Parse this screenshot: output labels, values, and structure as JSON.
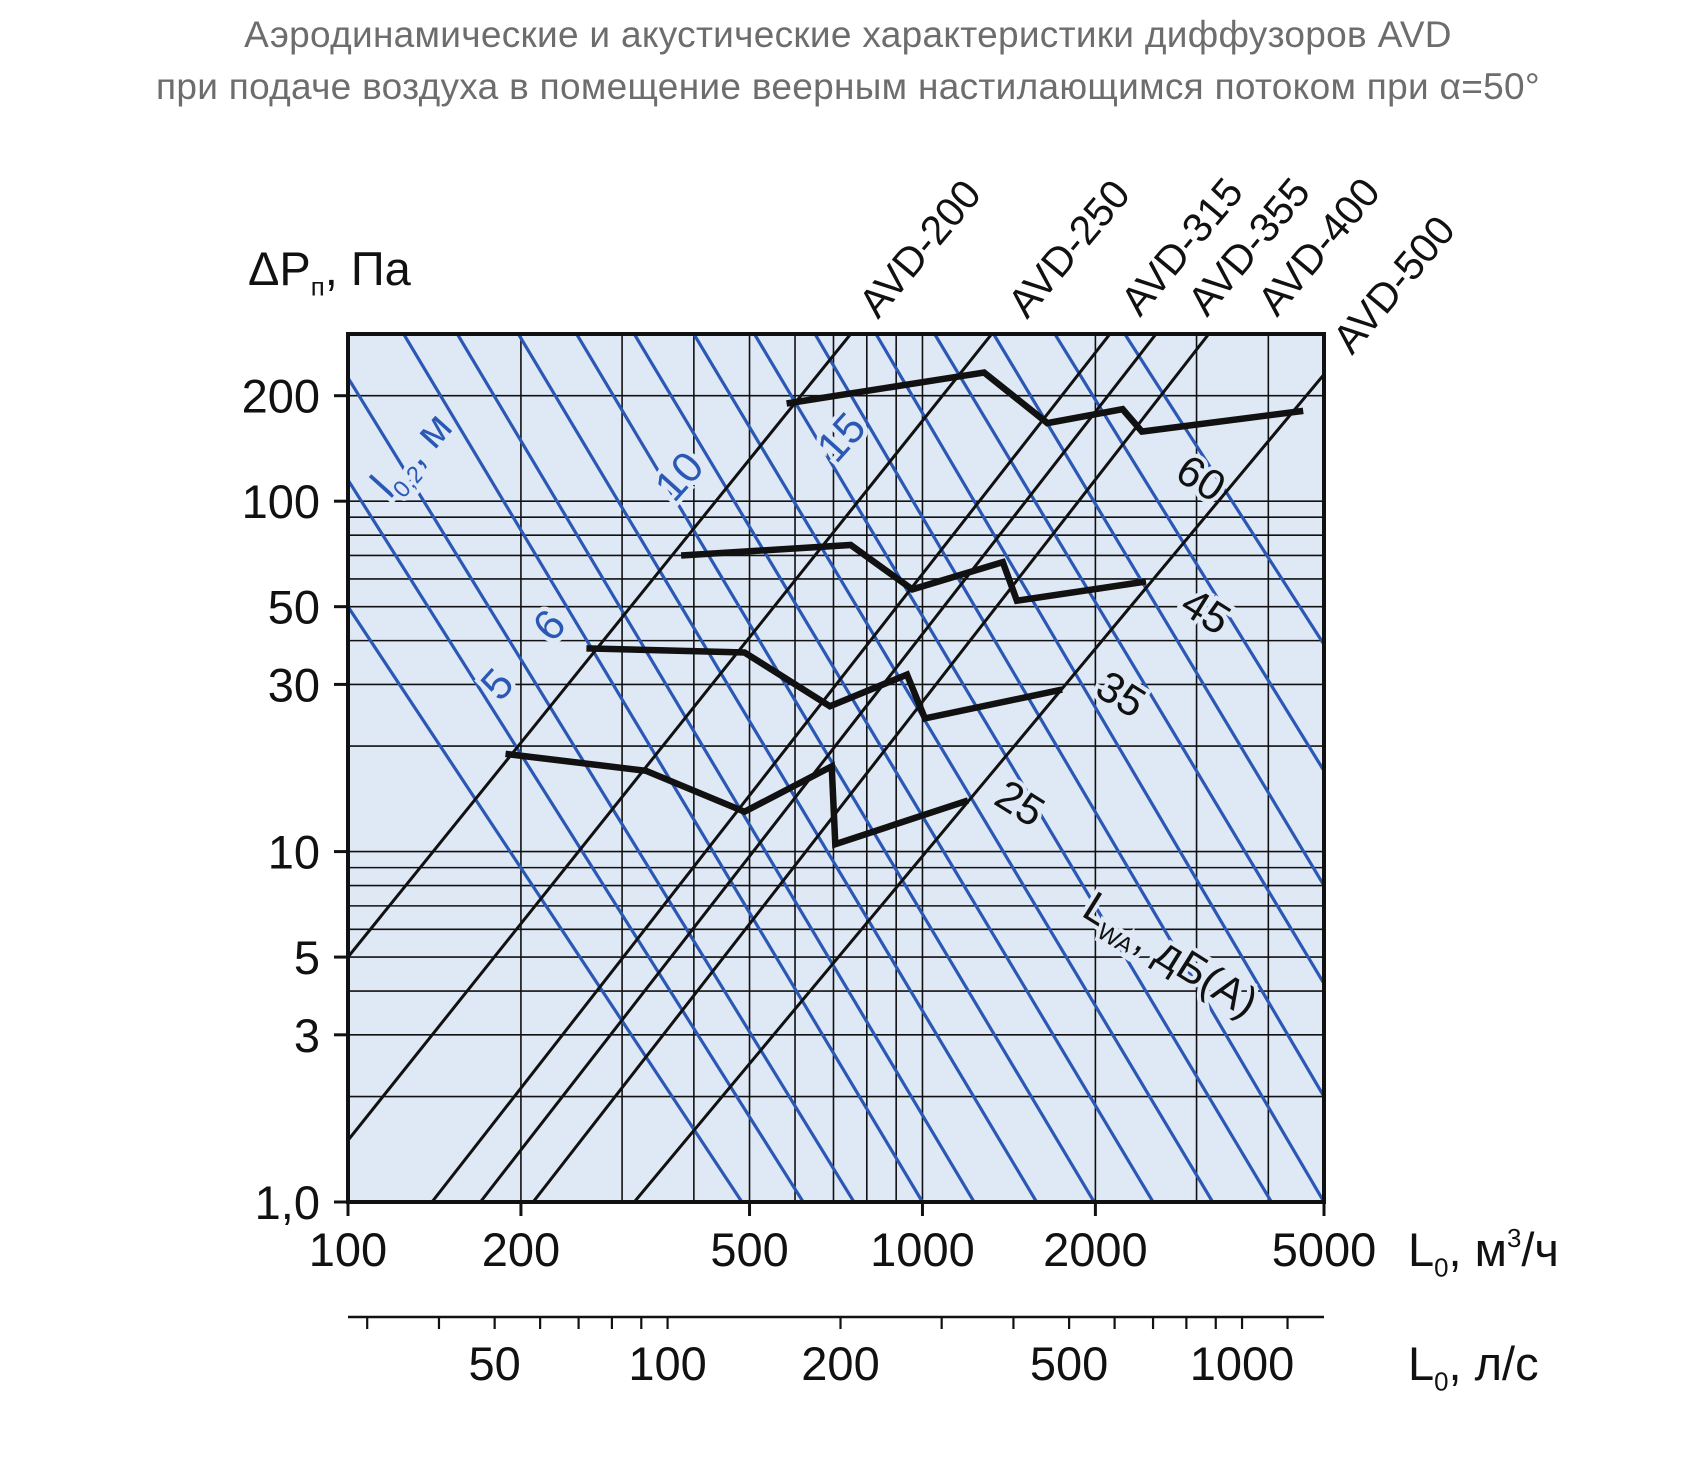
{
  "title_line1": "Аэродинамические и акустические характеристики диффузоров AVD",
  "title_line2": "при подаче воздуха в помещение веерным настилающимся потоком при α=50°",
  "chart_data": {
    "type": "line",
    "x_axis": {
      "label": "L",
      "label_sub": "0",
      "label_unit": ", м",
      "label_sup": "3",
      "label_tail": "/ч",
      "scale": "log",
      "range": [
        100,
        5000
      ],
      "ticks": [
        100,
        200,
        500,
        1000,
        2000,
        5000
      ],
      "tick_labels": [
        "100",
        "200",
        "500",
        "1000",
        "2000",
        "5000"
      ]
    },
    "x2_axis": {
      "label": "L",
      "label_sub": "0",
      "label_tail": ", л/с",
      "scale": "log",
      "range_ls": [
        27.78,
        1388.9
      ],
      "ticks": [
        50,
        100,
        200,
        500,
        1000
      ],
      "tick_labels": [
        "50",
        "100",
        "200",
        "500",
        "1000"
      ]
    },
    "y_axis": {
      "label": "ΔP",
      "label_sub": "п",
      "label_tail": ", Па",
      "scale": "log",
      "range": [
        1.0,
        300
      ],
      "ticks": [
        1.0,
        3,
        5,
        10,
        30,
        50,
        100,
        200
      ],
      "tick_labels": [
        "1,0",
        "3",
        "5",
        "10",
        "30",
        "50",
        "100",
        "200"
      ]
    },
    "grid": true,
    "diffusers": [
      {
        "name": "AVD-200",
        "points": [
          [
            100,
            5
          ],
          [
            750,
            300
          ]
        ]
      },
      {
        "name": "AVD-250",
        "points": [
          [
            100,
            1.5
          ],
          [
            1320,
            300
          ]
        ]
      },
      {
        "name": "AVD-315",
        "points": [
          [
            140,
            1.0
          ],
          [
            2120,
            300
          ]
        ]
      },
      {
        "name": "AVD-355",
        "points": [
          [
            170,
            1.0
          ],
          [
            2550,
            300
          ]
        ]
      },
      {
        "name": "AVD-400",
        "points": [
          [
            210,
            1.0
          ],
          [
            3150,
            300
          ]
        ]
      },
      {
        "name": "AVD-500",
        "points": [
          [
            315,
            1.0
          ],
          [
            5000,
            230
          ]
        ]
      }
    ],
    "throw_lines": {
      "label": "l",
      "label_sub": "0,2",
      "label_tail": ", м",
      "lines": [
        {
          "value": "5",
          "points": [
            [
              100,
              50
            ],
            [
              485,
              1.0
            ]
          ]
        },
        {
          "value": "6",
          "points": [
            [
              100,
              115
            ],
            [
              620,
              1.0
            ]
          ]
        },
        {
          "value": "",
          "points": [
            [
              100,
              225
            ],
            [
              760,
              1.0
            ]
          ]
        },
        {
          "value": "10",
          "points": [
            [
              125,
              300
            ],
            [
              1000,
              1.0
            ]
          ]
        },
        {
          "value": "",
          "points": [
            [
              155,
              300
            ],
            [
              1230,
              1.0
            ]
          ]
        },
        {
          "value": "",
          "points": [
            [
              198,
              300
            ],
            [
              1580,
              1.0
            ]
          ]
        },
        {
          "value": "",
          "points": [
            [
              250,
              300
            ],
            [
              1990,
              1.0
            ]
          ]
        },
        {
          "value": "15",
          "points": [
            [
              315,
              300
            ],
            [
              2520,
              1.0
            ]
          ]
        },
        {
          "value": "",
          "points": [
            [
              400,
              300
            ],
            [
              3200,
              1.0
            ]
          ]
        },
        {
          "value": "",
          "points": [
            [
              510,
              300
            ],
            [
              4050,
              1.0
            ]
          ]
        },
        {
          "value": "",
          "points": [
            [
              650,
              300
            ],
            [
              5000,
              1.0
            ]
          ]
        },
        {
          "value": "",
          "points": [
            [
              830,
              300
            ],
            [
              5000,
              2.0
            ]
          ]
        },
        {
          "value": "",
          "points": [
            [
              1050,
              300
            ],
            [
              5000,
              4.2
            ]
          ]
        },
        {
          "value": "",
          "points": [
            [
              1330,
              300
            ],
            [
              5000,
              8.0
            ]
          ]
        },
        {
          "value": "",
          "points": [
            [
              1700,
              300
            ],
            [
              5000,
              17
            ]
          ]
        },
        {
          "value": "",
          "points": [
            [
              2250,
              300
            ],
            [
              5000,
              39
            ]
          ]
        }
      ]
    },
    "noise_lines": {
      "label": "L",
      "label_sub": "WA",
      "label_tail": ", дБ(А)",
      "lines": [
        {
          "value": "25",
          "points": [
            [
              188,
              19
            ],
            [
              330,
              17
            ],
            [
              490,
              13
            ],
            [
              695,
              17.5
            ],
            [
              705,
              10.5
            ],
            [
              1200,
              14
            ]
          ]
        },
        {
          "value": "35",
          "points": [
            [
              260,
              38
            ],
            [
              490,
              37
            ],
            [
              690,
              26
            ],
            [
              940,
              32
            ],
            [
              1010,
              24
            ],
            [
              1750,
              29
            ]
          ]
        },
        {
          "value": "45",
          "points": [
            [
              380,
              70
            ],
            [
              750,
              75
            ],
            [
              960,
              56
            ],
            [
              1380,
              67
            ],
            [
              1460,
              52
            ],
            [
              2450,
              59
            ]
          ]
        },
        {
          "value": "60",
          "points": [
            [
              580,
              190
            ],
            [
              1280,
              233
            ],
            [
              1650,
              167
            ],
            [
              2230,
              183
            ],
            [
              2410,
              158
            ],
            [
              4600,
              181
            ]
          ]
        }
      ]
    }
  }
}
